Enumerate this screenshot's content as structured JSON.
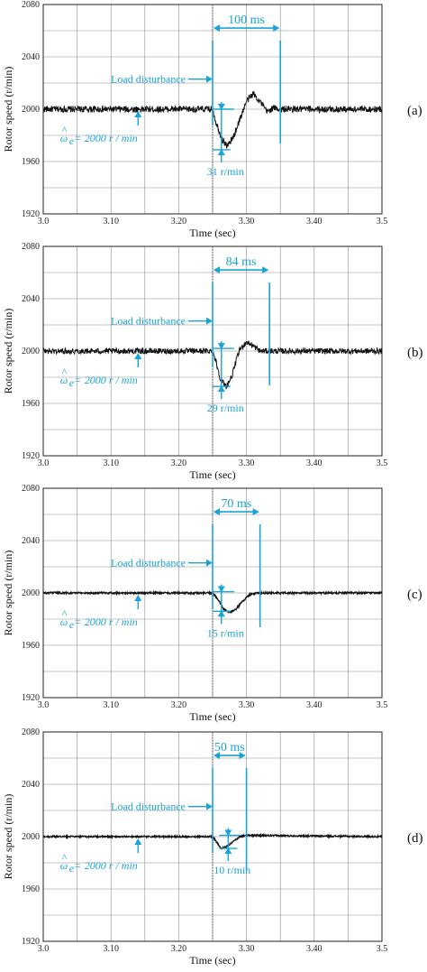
{
  "chart_data": [
    {
      "type": "line",
      "panel_label": "(a)",
      "xlabel": "Time (sec)",
      "ylabel": "Rotor speed (r/min)",
      "xlim": [
        3.0,
        3.5
      ],
      "ylim": [
        1920,
        2080
      ],
      "x_ticks": [
        "3.0",
        "3.10",
        "3.20",
        "3.30",
        "3.40",
        "3.5"
      ],
      "y_ticks": [
        "1920",
        "1960",
        "2000",
        "2040",
        "2080"
      ],
      "grid": true,
      "series": [
        {
          "x": [
            3.0,
            3.25,
            3.255,
            3.265,
            3.272,
            3.28,
            3.29,
            3.3,
            3.31,
            3.32,
            3.33,
            3.34,
            3.35,
            3.5
          ],
          "y": [
            2000,
            2000,
            1990,
            1976,
            1972,
            1978,
            1992,
            2006,
            2012,
            2006,
            1998,
            2001,
            2000,
            2000
          ]
        }
      ],
      "noise_amplitude": 2.5,
      "disturbance_time": 3.25,
      "settle_end": 3.35,
      "dip_low": 1969,
      "dip_high": 2000,
      "annotations": {
        "duration": "100 ms",
        "disturbance": "Load disturbance",
        "reference": "2000 r / min",
        "dip": "31 r/min"
      }
    },
    {
      "type": "line",
      "panel_label": "(b)",
      "xlabel": "Time (sec)",
      "ylabel": "Rotor speed (r/min)",
      "xlim": [
        3.0,
        3.5
      ],
      "ylim": [
        1920,
        2080
      ],
      "x_ticks": [
        "3.0",
        "3.10",
        "3.20",
        "3.30",
        "3.40",
        "3.5"
      ],
      "y_ticks": [
        "1920",
        "1960",
        "2000",
        "2040",
        "2080"
      ],
      "grid": true,
      "series": [
        {
          "x": [
            3.0,
            3.25,
            3.255,
            3.262,
            3.27,
            3.278,
            3.285,
            3.29,
            3.3,
            3.31,
            3.32,
            3.334,
            3.5
          ],
          "y": [
            2000,
            2000,
            1992,
            1978,
            1973,
            1980,
            1993,
            2001,
            2007,
            2004,
            2000,
            2000,
            2000
          ]
        }
      ],
      "noise_amplitude": 2.2,
      "disturbance_time": 3.25,
      "settle_end": 3.334,
      "dip_low": 1973,
      "dip_high": 2002,
      "annotations": {
        "duration": "84 ms",
        "disturbance": "Load disturbance",
        "reference": "2000 r / min",
        "dip": "29 r/min"
      }
    },
    {
      "type": "line",
      "panel_label": "(c)",
      "xlabel": "Time (sec)",
      "ylabel": "Rotor speed (r/min)",
      "xlim": [
        3.0,
        3.5
      ],
      "ylim": [
        1920,
        2080
      ],
      "x_ticks": [
        "3.0",
        "3.10",
        "3.20",
        "3.30",
        "3.40",
        "3.5"
      ],
      "y_ticks": [
        "1920",
        "1960",
        "2000",
        "2040",
        "2080"
      ],
      "grid": true,
      "series": [
        {
          "x": [
            3.0,
            3.25,
            3.258,
            3.266,
            3.275,
            3.285,
            3.295,
            3.305,
            3.32,
            3.5
          ],
          "y": [
            2000,
            2000,
            1995,
            1988,
            1985,
            1988,
            1994,
            1999,
            2000,
            2000
          ]
        }
      ],
      "noise_amplitude": 0.7,
      "disturbance_time": 3.25,
      "settle_end": 3.32,
      "dip_low": 1986,
      "dip_high": 2001,
      "annotations": {
        "duration": "70 ms",
        "disturbance": "Load disturbance",
        "reference": "2000 r / min",
        "dip": "15 r/min"
      }
    },
    {
      "type": "line",
      "panel_label": "(d)",
      "xlabel": "Time (sec)",
      "ylabel": "Rotor speed (r/min)",
      "xlim": [
        3.0,
        3.5
      ],
      "ylim": [
        1920,
        2080
      ],
      "x_ticks": [
        "3.0",
        "3.10",
        "3.20",
        "3.30",
        "3.40",
        "3.5"
      ],
      "y_ticks": [
        "1920",
        "1960",
        "2000",
        "2040",
        "2080"
      ],
      "grid": true,
      "series": [
        {
          "x": [
            3.0,
            3.25,
            3.256,
            3.262,
            3.27,
            3.28,
            3.29,
            3.3,
            3.5
          ],
          "y": [
            2000,
            2000,
            1996,
            1991,
            1992,
            1996,
            2000,
            2001,
            2000
          ]
        }
      ],
      "noise_amplitude": 0.6,
      "disturbance_time": 3.25,
      "settle_end": 3.3,
      "dip_low": 1991,
      "dip_high": 2001,
      "annotations": {
        "duration": "50 ms",
        "disturbance": "Load disturbance",
        "reference": "2000 r / min",
        "dip": "10 r/min"
      }
    }
  ],
  "colors": {
    "signal": "#111111",
    "annotation": "#1aa3d6",
    "grid": "#8c8c8c",
    "dotted_marker": "#555555"
  }
}
